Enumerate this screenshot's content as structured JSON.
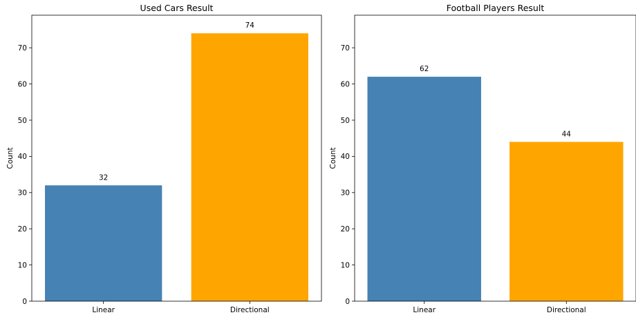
{
  "chart_data": [
    {
      "type": "bar",
      "title": "Used Cars Result",
      "xlabel": "",
      "ylabel": "Count",
      "categories": [
        "Linear",
        "Directional"
      ],
      "values": [
        32,
        74
      ],
      "colors": [
        "#4682b4",
        "#ffa500"
      ],
      "data_labels": [
        "32",
        "74"
      ],
      "ylim": [
        0,
        79
      ],
      "yticks": [
        0,
        10,
        20,
        30,
        40,
        50,
        60,
        70
      ],
      "grid": false,
      "legend": "none"
    },
    {
      "type": "bar",
      "title": "Football Players Result",
      "xlabel": "",
      "ylabel": "Count",
      "categories": [
        "Linear",
        "Directional"
      ],
      "values": [
        62,
        44
      ],
      "colors": [
        "#4682b4",
        "#ffa500"
      ],
      "data_labels": [
        "62",
        "44"
      ],
      "ylim": [
        0,
        79
      ],
      "yticks": [
        0,
        10,
        20,
        30,
        40,
        50,
        60,
        70
      ],
      "grid": false,
      "legend": "none"
    }
  ]
}
